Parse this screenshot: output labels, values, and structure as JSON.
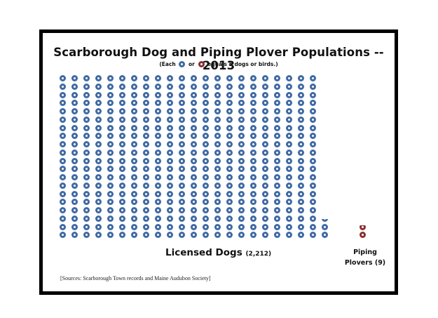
{
  "chart_data": {
    "type": "pictograph",
    "title": "Scarborough Dog and Piping Plover Populations -- 2013",
    "subtitle": {
      "prefix": "(Each",
      "connector": "or",
      "suffix": "equals 5 dogs or birds.)"
    },
    "unit_value": 5,
    "series": [
      {
        "name": "Licensed Dogs",
        "value": 2212,
        "count_label": "(2,212)",
        "color": "#3f6aa3",
        "icons": 442.4,
        "columns": 23,
        "rows": 20
      },
      {
        "name": "Piping Plovers",
        "value": 9,
        "count_label": "(9)",
        "color": "#8b2e2e",
        "icons": 1.8
      }
    ],
    "labels": {
      "dogs_main": "Licensed Dogs",
      "dogs_count": "(2,212)",
      "plovers_line1": "Piping",
      "plovers_line2": "Plovers (9)"
    },
    "sources": "[Sources: Scarborough Town records and Maine Audubon Society]"
  }
}
